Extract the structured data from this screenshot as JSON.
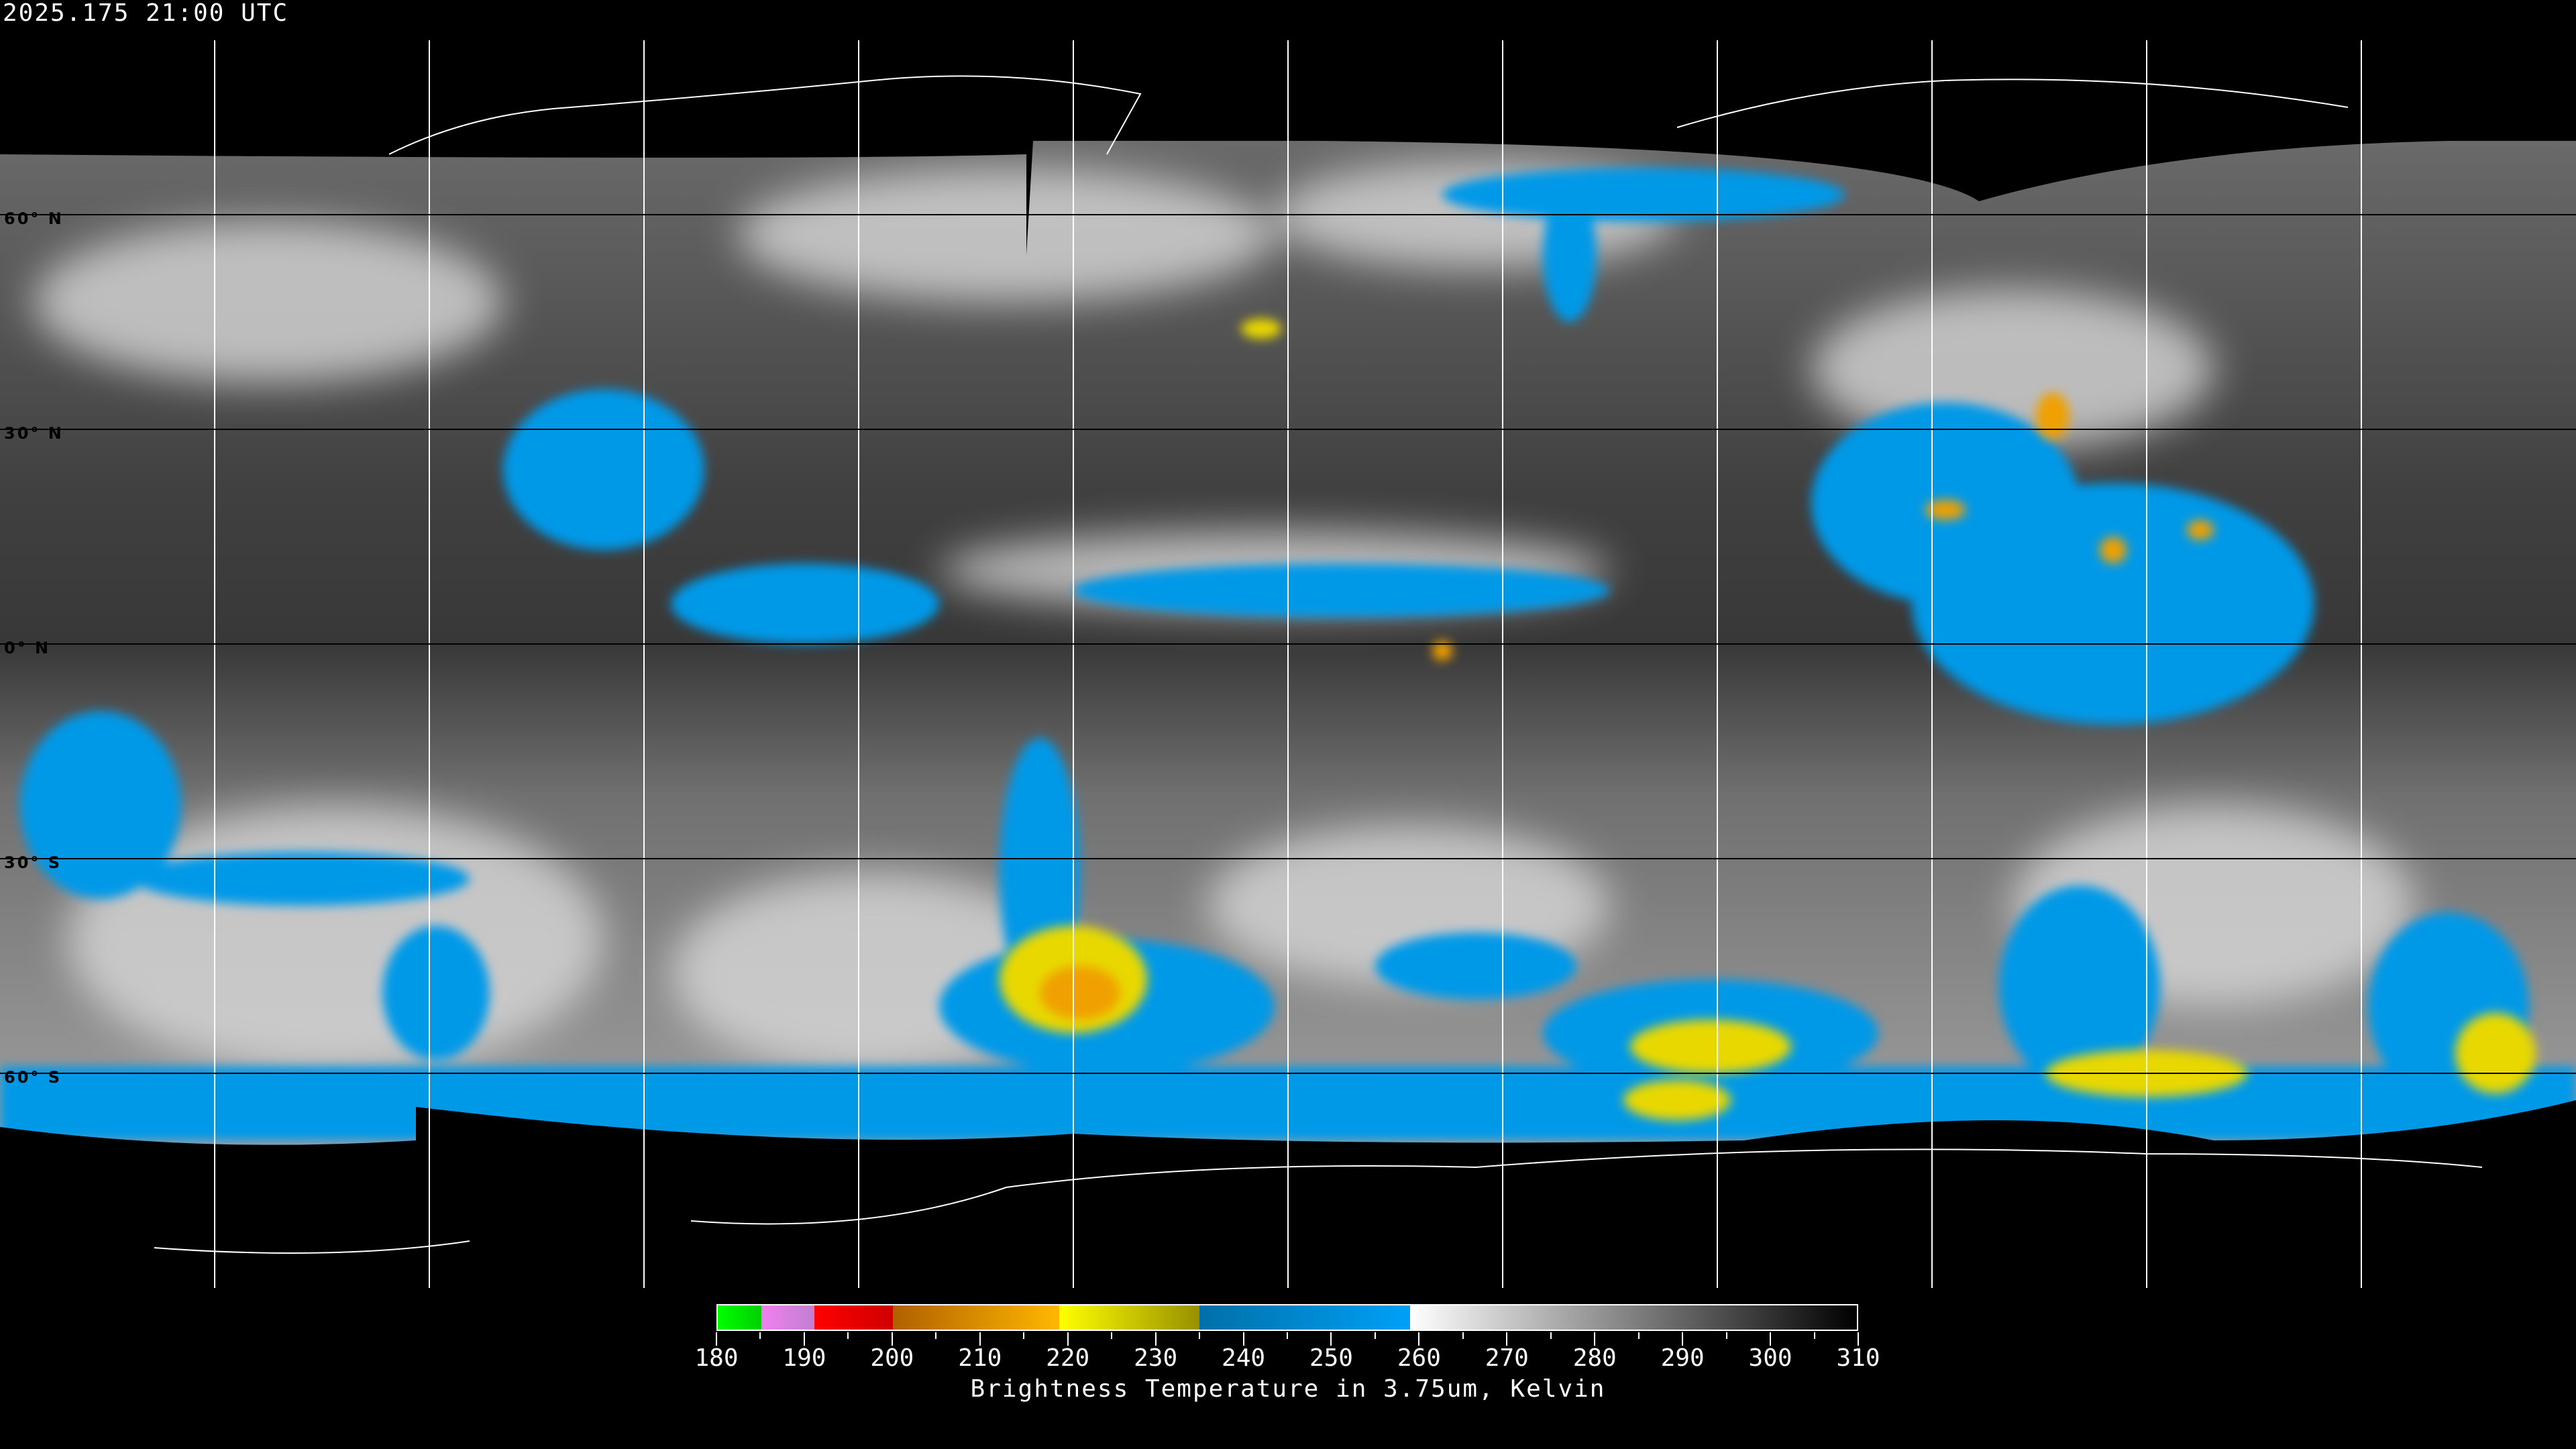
{
  "header": {
    "timestamp": "2025.175 21:00 UTC"
  },
  "map": {
    "projection": "equirectangular",
    "grid_spacing_deg": 30,
    "lat_labels": [
      "60° N",
      "30° N",
      "0° N",
      "30° S",
      "60° S"
    ]
  },
  "colorbar": {
    "caption": "Brightness Temperature in 3.75um, Kelvin",
    "min": 180,
    "max": 310,
    "tick_labels": [
      "180",
      "190",
      "200",
      "210",
      "220",
      "230",
      "240",
      "250",
      "260",
      "270",
      "280",
      "290",
      "300",
      "310"
    ],
    "segments": [
      {
        "from": 180,
        "to": 185,
        "colors": [
          "#00ff00",
          "#00d000"
        ]
      },
      {
        "from": 185,
        "to": 191,
        "colors": [
          "#f080f0",
          "#c080d0"
        ]
      },
      {
        "from": 191,
        "to": 200,
        "colors": [
          "#ff0000",
          "#d00000"
        ]
      },
      {
        "from": 200,
        "to": 219,
        "colors": [
          "#b06000",
          "#ffb800"
        ]
      },
      {
        "from": 219,
        "to": 235,
        "colors": [
          "#ffff00",
          "#989000"
        ]
      },
      {
        "from": 235,
        "to": 259,
        "colors": [
          "#0070a8",
          "#00a0f8"
        ]
      },
      {
        "from": 259,
        "to": 310,
        "colors": [
          "#ffffff",
          "#000000"
        ]
      }
    ]
  },
  "colors": {
    "cold_cloud": "#0099e8",
    "very_cold": "#e8d800",
    "deep_convection": "#f0a000",
    "grid": "#ffffff",
    "coast": "#000000"
  }
}
